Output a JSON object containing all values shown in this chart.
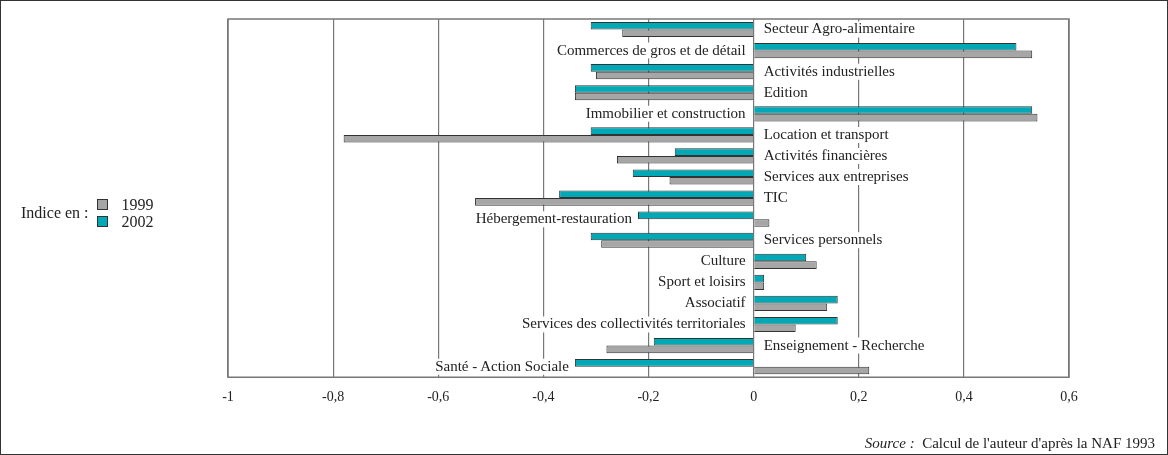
{
  "chart_data": {
    "type": "bar",
    "orientation": "horizontal",
    "legend_title": "Indice en :",
    "legend": "left",
    "grid": "x",
    "categories": [
      "Secteur Agro-alimentaire",
      "Commerces de gros et de détail",
      "Activités industrielles",
      "Edition",
      "Immobilier et construction",
      "Location et transport",
      "Activités financières",
      "Services aux entreprises",
      "TIC",
      "Hébergement-restauration",
      "Services personnels",
      "Culture",
      "Sport et loisirs",
      "Associatif",
      "Services des collectivités territoriales",
      "Enseignement - Recherche",
      "Santé - Action Sociale"
    ],
    "series": [
      {
        "name": "1999",
        "color": "#a6a6a6",
        "values": [
          -0.25,
          0.53,
          -0.3,
          -0.34,
          0.54,
          -0.78,
          -0.26,
          -0.16,
          -0.53,
          0.03,
          -0.29,
          0.12,
          0.02,
          0.14,
          0.08,
          -0.28,
          0.22
        ]
      },
      {
        "name": "2002",
        "color": "#00a9b5",
        "values": [
          -0.31,
          0.5,
          -0.31,
          -0.34,
          0.53,
          -0.31,
          -0.15,
          -0.23,
          -0.37,
          -0.22,
          -0.31,
          0.1,
          0.02,
          0.16,
          0.16,
          -0.19,
          -0.34
        ]
      }
    ],
    "xlim": [
      -1,
      0.6
    ],
    "xticks": [
      {
        "value": -1,
        "label": "-1"
      },
      {
        "value": -0.8,
        "label": "-0,8"
      },
      {
        "value": -0.6,
        "label": "-0,6"
      },
      {
        "value": -0.4,
        "label": "-0,4"
      },
      {
        "value": -0.2,
        "label": "-0,2"
      },
      {
        "value": 0,
        "label": "0"
      },
      {
        "value": 0.2,
        "label": "0,2"
      },
      {
        "value": 0.4,
        "label": "0,4"
      },
      {
        "value": 0.6,
        "label": "0,6"
      }
    ],
    "annotations": [
      "Source : Calcul de l'auteur d'après la NAF 1993"
    ]
  }
}
